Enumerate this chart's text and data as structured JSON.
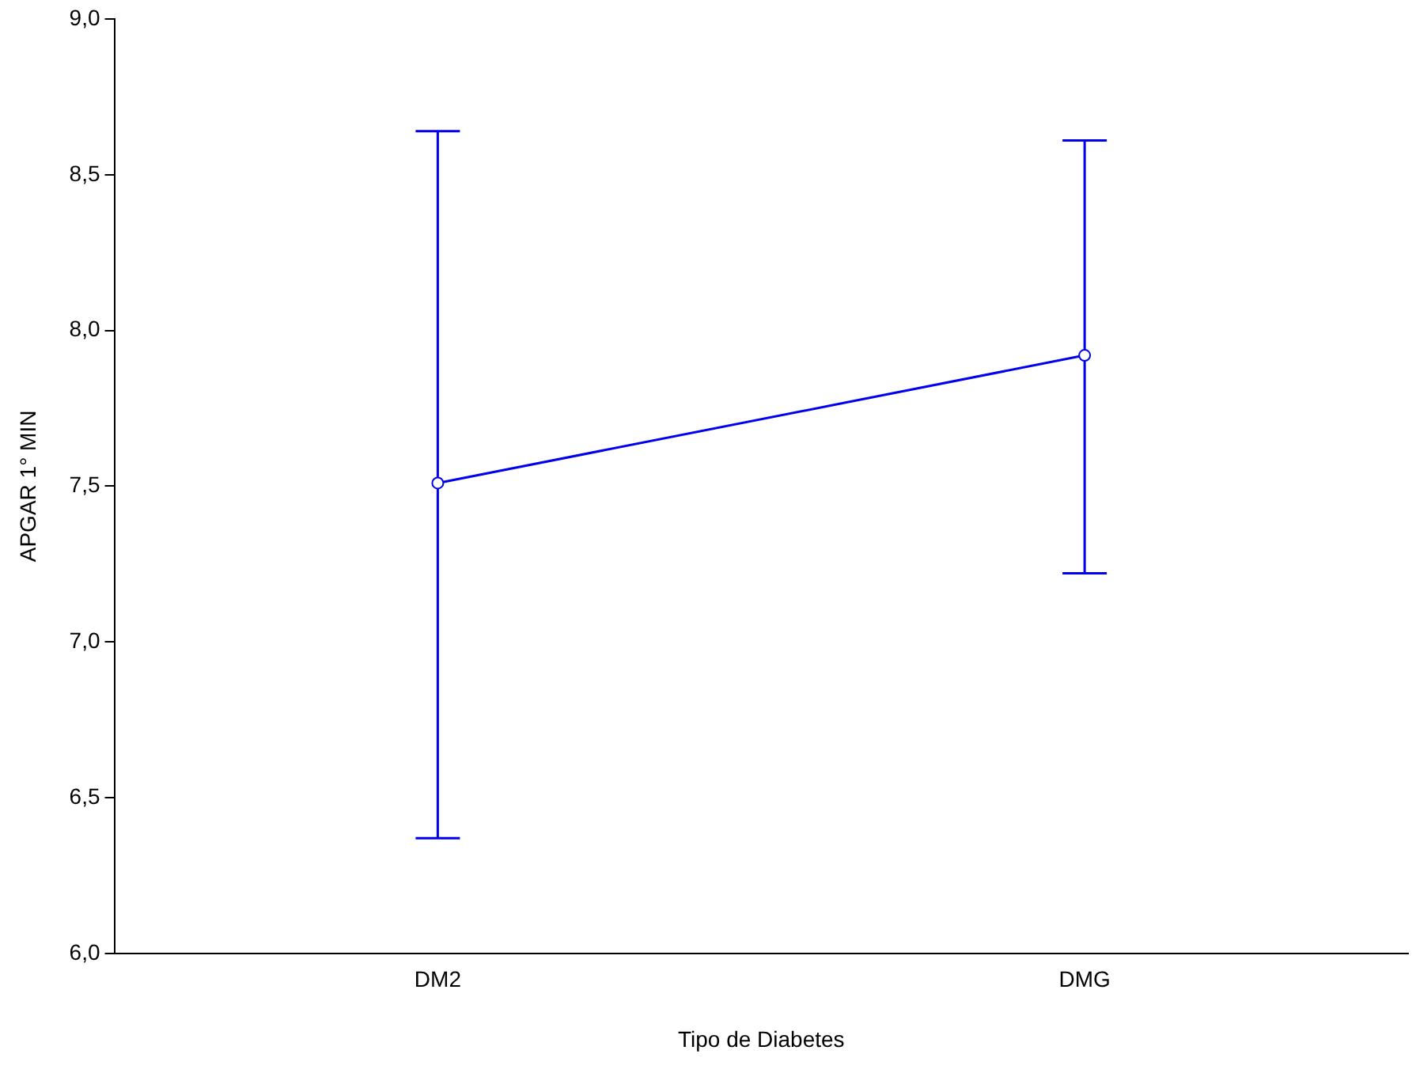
{
  "chart_data": {
    "type": "line",
    "xlabel": "Tipo de Diabetes",
    "ylabel": "APGAR 1° MIN",
    "categories": [
      "DM2",
      "DMG"
    ],
    "series": [
      {
        "color": "#0000ee",
        "values": [
          7.51,
          7.92
        ],
        "errors": [
          [
            6.37,
            8.64
          ],
          [
            7.22,
            8.61
          ]
        ]
      }
    ],
    "ylim": [
      6,
      9
    ],
    "yticks": [
      {
        "value": 6,
        "label": "6,0"
      },
      {
        "value": 6.5,
        "label": "6,5"
      },
      {
        "value": 7,
        "label": "7,0"
      },
      {
        "value": 7.5,
        "label": "7,5"
      },
      {
        "value": 8,
        "label": "8,0"
      },
      {
        "value": 8.5,
        "label": "8,5"
      },
      {
        "value": 9,
        "label": "9,0"
      }
    ],
    "grid": false,
    "legend": false,
    "marker": "circle",
    "line_style": "solid"
  }
}
